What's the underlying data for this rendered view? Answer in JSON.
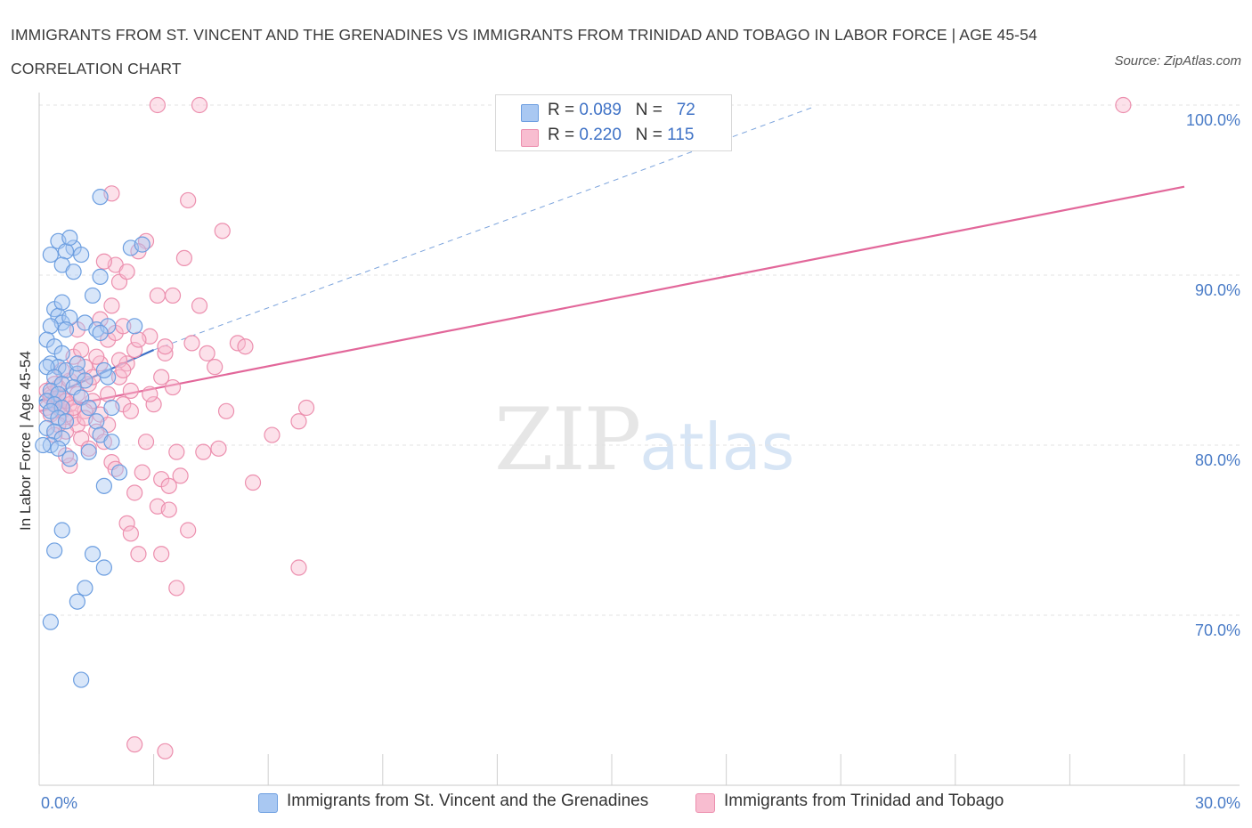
{
  "header": {
    "title": "IMMIGRANTS FROM ST. VINCENT AND THE GRENADINES VS IMMIGRANTS FROM TRINIDAD AND TOBAGO IN LABOR FORCE | AGE 45-54 CORRELATION CHART",
    "source": "Source: ZipAtlas.com"
  },
  "watermark": {
    "zip": "ZIP",
    "atlas": "atlas"
  },
  "legend_top": {
    "rows": [
      {
        "r_label": "R = ",
        "r_value": "0.089",
        "n_label": "N = ",
        "n_value": "72",
        "color": "#a9c8f2",
        "border": "#6c9ee0"
      },
      {
        "r_label": "R = ",
        "r_value": "0.220",
        "n_label": "N = ",
        "n_value": "115",
        "color": "#f8bdd0",
        "border": "#ec8fae"
      }
    ]
  },
  "chart_data": {
    "type": "scatter",
    "title": "IMMIGRANTS FROM ST. VINCENT AND THE GRENADINES VS IMMIGRANTS FROM TRINIDAD AND TOBAGO IN LABOR FORCE | AGE 45-54 CORRELATION CHART",
    "xlabel": "",
    "ylabel": "In Labor Force | Age 45-54",
    "xlim": [
      0,
      30
    ],
    "ylim": [
      60,
      100
    ],
    "x_tick_labels": [
      {
        "value": 0,
        "label": "0.0%"
      },
      {
        "value": 30,
        "label": "30.0%"
      }
    ],
    "y_tick_labels": [
      {
        "value": 100,
        "label": "100.0%"
      },
      {
        "value": 90,
        "label": "90.0%"
      },
      {
        "value": 80,
        "label": "80.0%"
      },
      {
        "value": 70,
        "label": "70.0%"
      }
    ],
    "grid": true,
    "legend_placement": "bottom",
    "series": [
      {
        "name": "Immigrants from St. Vincent and the Grenadines",
        "color": "#6c9ee0",
        "fill": "#a9c8f2",
        "trend": {
          "x": [
            0,
            3.0
          ],
          "y": [
            82.6,
            85.6
          ],
          "color": "#3d6fc7"
        },
        "trend_extension": {
          "x": [
            3.0,
            20.3
          ],
          "y": [
            85.6,
            99.9
          ],
          "color": "#7ba3dc"
        },
        "points": [
          [
            0.4,
            88.0
          ],
          [
            0.5,
            87.6
          ],
          [
            0.6,
            87.2
          ],
          [
            0.8,
            87.5
          ],
          [
            0.3,
            87.0
          ],
          [
            0.7,
            86.8
          ],
          [
            0.2,
            86.2
          ],
          [
            0.4,
            85.8
          ],
          [
            0.6,
            85.4
          ],
          [
            0.3,
            84.8
          ],
          [
            0.5,
            84.6
          ],
          [
            0.7,
            84.4
          ],
          [
            0.2,
            84.6
          ],
          [
            0.4,
            84.0
          ],
          [
            0.6,
            83.6
          ],
          [
            0.3,
            83.2
          ],
          [
            0.5,
            83.0
          ],
          [
            0.2,
            82.6
          ],
          [
            0.4,
            82.4
          ],
          [
            0.6,
            82.2
          ],
          [
            0.3,
            82.0
          ],
          [
            0.5,
            81.6
          ],
          [
            0.7,
            81.4
          ],
          [
            0.2,
            81.0
          ],
          [
            0.4,
            80.8
          ],
          [
            0.6,
            80.4
          ],
          [
            0.3,
            80.0
          ],
          [
            0.1,
            80.0
          ],
          [
            0.5,
            79.8
          ],
          [
            0.8,
            79.2
          ],
          [
            1.0,
            84.2
          ],
          [
            1.2,
            83.8
          ],
          [
            0.9,
            83.4
          ],
          [
            1.1,
            82.8
          ],
          [
            1.3,
            82.2
          ],
          [
            1.5,
            81.4
          ],
          [
            0.3,
            91.2
          ],
          [
            0.5,
            92.0
          ],
          [
            0.9,
            91.6
          ],
          [
            0.7,
            91.4
          ],
          [
            1.1,
            91.2
          ],
          [
            0.6,
            90.6
          ],
          [
            0.9,
            90.2
          ],
          [
            0.8,
            92.2
          ],
          [
            1.4,
            88.8
          ],
          [
            0.6,
            88.4
          ],
          [
            1.2,
            87.2
          ],
          [
            1.5,
            86.8
          ],
          [
            1.8,
            87.0
          ],
          [
            1.6,
            86.6
          ],
          [
            1.8,
            84.0
          ],
          [
            1.7,
            84.4
          ],
          [
            1.9,
            82.2
          ],
          [
            1.6,
            80.6
          ],
          [
            1.9,
            80.2
          ],
          [
            1.3,
            79.6
          ],
          [
            1.7,
            77.6
          ],
          [
            2.1,
            78.4
          ],
          [
            2.4,
            91.6
          ],
          [
            2.7,
            91.8
          ],
          [
            1.6,
            94.6
          ],
          [
            2.5,
            87.0
          ],
          [
            0.6,
            75.0
          ],
          [
            0.4,
            73.8
          ],
          [
            1.4,
            73.6
          ],
          [
            1.7,
            72.8
          ],
          [
            1.2,
            71.6
          ],
          [
            1.0,
            70.8
          ],
          [
            0.3,
            69.6
          ],
          [
            1.1,
            66.2
          ],
          [
            1.6,
            89.9
          ],
          [
            1.0,
            84.8
          ]
        ]
      },
      {
        "name": "Immigrants from Trinidad and Tobago",
        "color": "#ec8fae",
        "fill": "#f8bdd0",
        "trend": {
          "x": [
            0,
            30
          ],
          "y": [
            82.0,
            95.2
          ],
          "color": "#e2679a"
        },
        "points": [
          [
            0.2,
            83.2
          ],
          [
            0.3,
            82.8
          ],
          [
            0.4,
            82.4
          ],
          [
            0.5,
            82.2
          ],
          [
            0.6,
            82.0
          ],
          [
            0.7,
            81.8
          ],
          [
            0.3,
            83.0
          ],
          [
            0.4,
            82.6
          ],
          [
            0.2,
            82.2
          ],
          [
            0.5,
            83.4
          ],
          [
            0.6,
            82.8
          ],
          [
            0.8,
            82.4
          ],
          [
            0.9,
            81.6
          ],
          [
            1.0,
            81.2
          ],
          [
            0.7,
            80.8
          ],
          [
            1.1,
            80.4
          ],
          [
            0.3,
            81.8
          ],
          [
            0.5,
            81.2
          ],
          [
            0.8,
            83.8
          ],
          [
            1.0,
            84.2
          ],
          [
            1.2,
            84.6
          ],
          [
            0.9,
            85.2
          ],
          [
            1.1,
            85.6
          ],
          [
            1.3,
            83.6
          ],
          [
            1.4,
            82.6
          ],
          [
            1.6,
            81.8
          ],
          [
            1.8,
            81.2
          ],
          [
            1.5,
            80.8
          ],
          [
            1.7,
            80.2
          ],
          [
            1.3,
            79.8
          ],
          [
            1.9,
            79.0
          ],
          [
            0.8,
            78.8
          ],
          [
            2.0,
            78.6
          ],
          [
            2.2,
            82.4
          ],
          [
            2.4,
            83.2
          ],
          [
            2.1,
            84.0
          ],
          [
            2.3,
            84.8
          ],
          [
            2.5,
            85.6
          ],
          [
            1.8,
            86.2
          ],
          [
            2.0,
            86.6
          ],
          [
            2.2,
            87.0
          ],
          [
            1.6,
            87.4
          ],
          [
            1.9,
            88.2
          ],
          [
            2.1,
            89.6
          ],
          [
            2.0,
            90.6
          ],
          [
            2.3,
            90.2
          ],
          [
            1.7,
            90.8
          ],
          [
            2.8,
            92.0
          ],
          [
            2.6,
            91.4
          ],
          [
            3.1,
            88.8
          ],
          [
            3.5,
            88.8
          ],
          [
            3.8,
            91.0
          ],
          [
            4.0,
            86.0
          ],
          [
            4.2,
            88.2
          ],
          [
            4.4,
            85.4
          ],
          [
            4.6,
            84.6
          ],
          [
            3.3,
            85.4
          ],
          [
            3.2,
            84.0
          ],
          [
            3.5,
            83.4
          ],
          [
            3.0,
            82.4
          ],
          [
            3.6,
            79.6
          ],
          [
            4.3,
            79.6
          ],
          [
            4.7,
            79.8
          ],
          [
            2.8,
            80.2
          ],
          [
            2.7,
            78.4
          ],
          [
            3.2,
            78.0
          ],
          [
            3.4,
            77.6
          ],
          [
            2.5,
            77.2
          ],
          [
            3.1,
            76.4
          ],
          [
            3.4,
            76.2
          ],
          [
            2.3,
            75.4
          ],
          [
            2.4,
            74.8
          ],
          [
            3.9,
            75.0
          ],
          [
            2.6,
            73.6
          ],
          [
            3.2,
            73.6
          ],
          [
            3.6,
            71.6
          ],
          [
            4.9,
            82.0
          ],
          [
            5.2,
            86.0
          ],
          [
            5.4,
            85.8
          ],
          [
            6.1,
            80.6
          ],
          [
            5.6,
            77.8
          ],
          [
            6.8,
            81.4
          ],
          [
            7.0,
            82.2
          ],
          [
            6.8,
            72.8
          ],
          [
            3.1,
            100.0
          ],
          [
            4.2,
            100.0
          ],
          [
            28.4,
            100.0
          ],
          [
            3.9,
            94.4
          ],
          [
            1.9,
            94.8
          ],
          [
            4.8,
            92.6
          ],
          [
            2.5,
            62.4
          ],
          [
            3.3,
            62.0
          ],
          [
            1.0,
            83.0
          ],
          [
            1.2,
            82.0
          ],
          [
            1.4,
            84.0
          ],
          [
            1.0,
            86.8
          ],
          [
            1.6,
            84.8
          ],
          [
            0.6,
            84.4
          ],
          [
            0.4,
            80.6
          ],
          [
            0.7,
            79.4
          ],
          [
            2.9,
            83.0
          ],
          [
            2.4,
            82.0
          ],
          [
            2.9,
            86.4
          ],
          [
            3.3,
            85.8
          ],
          [
            0.5,
            82.8
          ],
          [
            0.7,
            82.6
          ],
          [
            0.4,
            83.6
          ],
          [
            0.9,
            82.2
          ],
          [
            1.2,
            81.6
          ],
          [
            1.5,
            85.2
          ],
          [
            2.6,
            86.2
          ],
          [
            2.1,
            85.0
          ],
          [
            3.7,
            78.2
          ],
          [
            2.2,
            84.4
          ],
          [
            1.8,
            83.0
          ]
        ]
      }
    ]
  }
}
